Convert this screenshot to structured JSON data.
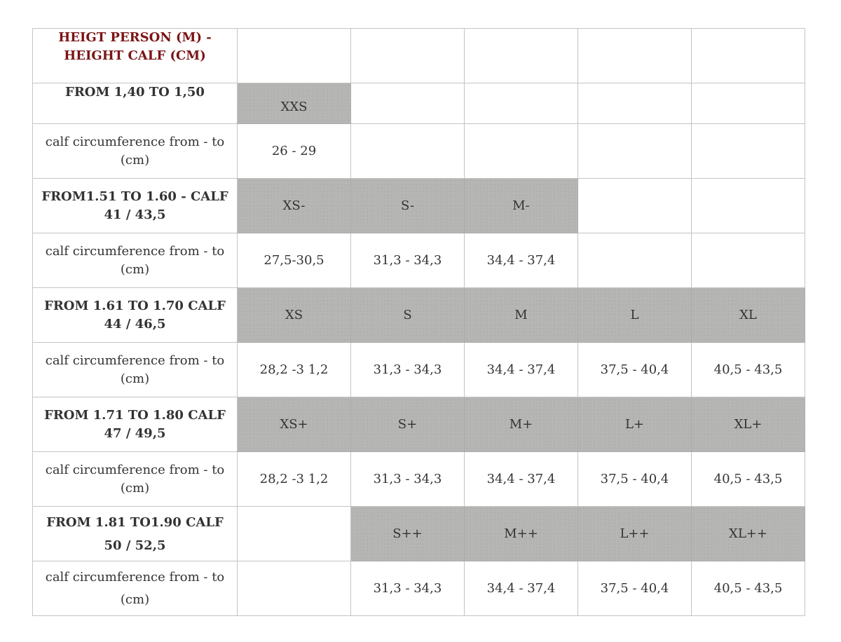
{
  "table": {
    "title": "HEIGT PERSON (M) - HEIGHT CALF (CM)",
    "title_color": "#7a1414",
    "filled_cell_color": "#b5b6b4",
    "rows": [
      {
        "range_label": "FROM 1,40 TO 1,50",
        "sizes": [
          "XXS",
          "",
          "",
          "",
          ""
        ],
        "calf_label": "calf circumference from - to (cm)",
        "calf_values": [
          "26 - 29",
          "",
          "",
          "",
          ""
        ]
      },
      {
        "range_label": "FROM1.51 TO 1.60 - CALF 41 / 43,5",
        "sizes": [
          "XS-",
          "S-",
          "M-",
          "",
          ""
        ],
        "calf_label": "calf circumference from - to (cm)",
        "calf_values": [
          "27,5-30,5",
          "31,3 - 34,3",
          "34,4 - 37,4",
          "",
          ""
        ]
      },
      {
        "range_label": "FROM 1.61 TO 1.70 CALF 44 / 46,5",
        "sizes": [
          "XS",
          "S",
          "M",
          "L",
          "XL"
        ],
        "calf_label": "calf circumference from - to (cm)",
        "calf_values": [
          "28,2 -3 1,2",
          "31,3 - 34,3",
          "34,4 - 37,4",
          "37,5 - 40,4",
          "40,5 - 43,5"
        ]
      },
      {
        "range_label": "FROM 1.71 TO 1.80 CALF 47 / 49,5",
        "sizes": [
          "XS+",
          "S+",
          "M+",
          "L+",
          "XL+"
        ],
        "calf_label": "calf circumference from - to (cm)",
        "calf_values": [
          "28,2 -3 1,2",
          "31,3 - 34,3",
          "34,4 - 37,4",
          "37,5 - 40,4",
          "40,5 - 43,5"
        ]
      },
      {
        "range_label": "FROM 1.81 TO1.90 CALF 50 / 52,5",
        "sizes": [
          "",
          "S++",
          "M++",
          "L++",
          "XL++"
        ],
        "calf_label": "calf circumference from - to (cm)",
        "calf_values": [
          "",
          "31,3 - 34,3",
          "34,4 - 37,4",
          "37,5 - 40,4",
          "40,5 - 43,5"
        ]
      }
    ]
  }
}
